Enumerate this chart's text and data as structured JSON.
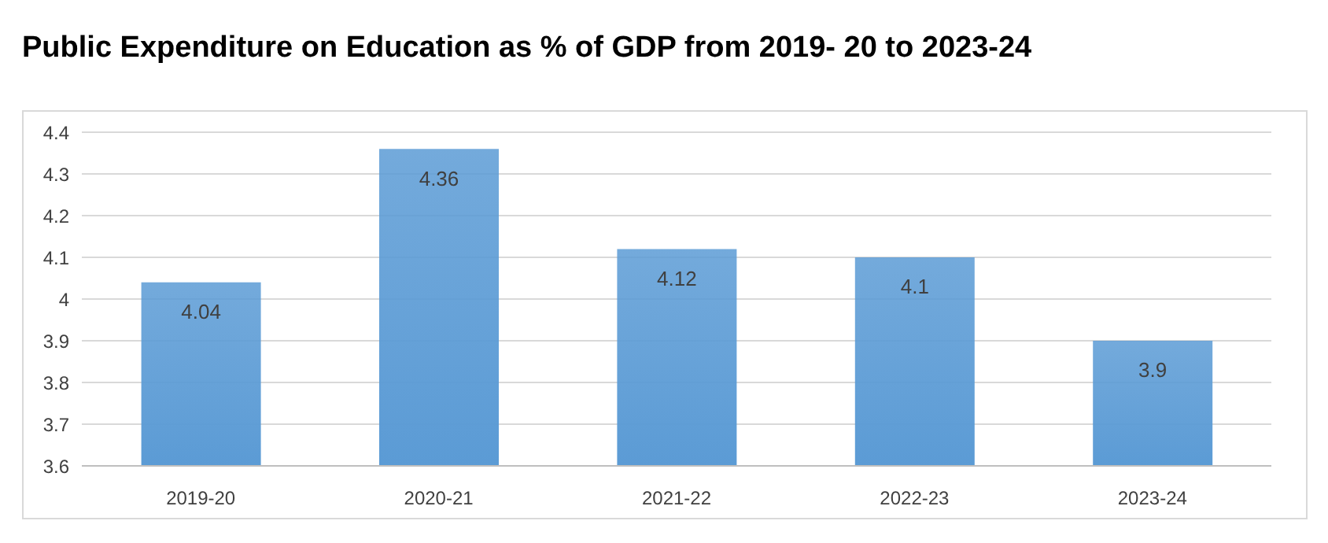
{
  "chart_data": {
    "type": "bar",
    "title": "Public Expenditure on Education as % of GDP from 2019- 20 to 2023-24",
    "categories": [
      "2019-20",
      "2020-21",
      "2021-22",
      "2022-23",
      "2023-24"
    ],
    "values": [
      4.04,
      4.36,
      4.12,
      4.1,
      3.9
    ],
    "color": "#5b9bd5",
    "ylim": [
      3.6,
      4.4
    ],
    "yticks": [
      3.6,
      3.7,
      3.8,
      3.9,
      4,
      4.1,
      4.2,
      4.3,
      4.4
    ],
    "grid": "y",
    "data_labels": true,
    "legend": false
  }
}
